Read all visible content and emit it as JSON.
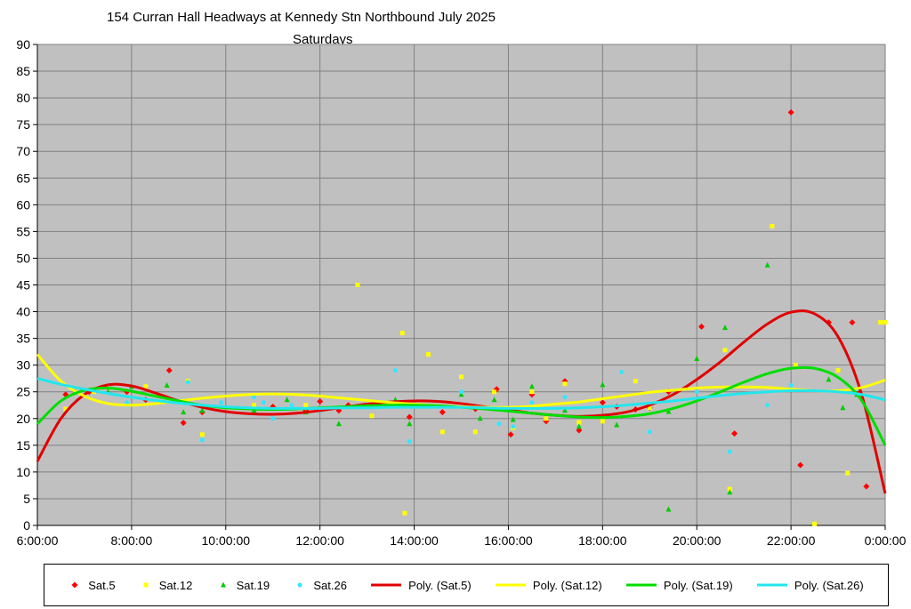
{
  "chart_data": {
    "type": "scatter",
    "title": "154 Curran Hall Headways at Kennedy Stn Northbound July 2025",
    "subtitle": "Saturdays",
    "xlabel": "",
    "ylabel": "",
    "xlim": [
      6,
      24
    ],
    "ylim": [
      0,
      90
    ],
    "y_ticks": [
      0,
      5,
      10,
      15,
      20,
      25,
      30,
      35,
      40,
      45,
      50,
      55,
      60,
      65,
      70,
      75,
      80,
      85,
      90
    ],
    "x_ticks": [
      {
        "value": 6,
        "label": "6:00:00"
      },
      {
        "value": 8,
        "label": "8:00:00"
      },
      {
        "value": 10,
        "label": "10:00:00"
      },
      {
        "value": 12,
        "label": "12:00:00"
      },
      {
        "value": 14,
        "label": "14:00:00"
      },
      {
        "value": 16,
        "label": "16:00:00"
      },
      {
        "value": 18,
        "label": "18:00:00"
      },
      {
        "value": 20,
        "label": "20:00:00"
      },
      {
        "value": 22,
        "label": "22:00:00"
      },
      {
        "value": 24,
        "label": "0:00:00"
      }
    ],
    "grid": true,
    "plot_background": "#c0c0c0",
    "legend_position": "bottom",
    "series": [
      {
        "name": "Sat.5",
        "kind": "scatter",
        "marker": "diamond",
        "color": "#ff0000",
        "points": [
          [
            6.6,
            24.5
          ],
          [
            7.1,
            25
          ],
          [
            7.9,
            25
          ],
          [
            8.3,
            23.5
          ],
          [
            8.8,
            29
          ],
          [
            9.1,
            19.2
          ],
          [
            9.5,
            21.2
          ],
          [
            10.6,
            22
          ],
          [
            11.0,
            22.2
          ],
          [
            11.7,
            21.5
          ],
          [
            12.0,
            23.2
          ],
          [
            12.4,
            21.5
          ],
          [
            12.6,
            22.5
          ],
          [
            13.1,
            22.5
          ],
          [
            13.9,
            20.3
          ],
          [
            14.6,
            21.2
          ],
          [
            15.3,
            21.8
          ],
          [
            15.75,
            25.5
          ],
          [
            16.05,
            17
          ],
          [
            16.5,
            24.5
          ],
          [
            16.8,
            19.5
          ],
          [
            17.2,
            27
          ],
          [
            17.5,
            17.8
          ],
          [
            18.0,
            23
          ],
          [
            18.3,
            22.2
          ],
          [
            18.7,
            21.7
          ],
          [
            19.0,
            22
          ],
          [
            19.4,
            25
          ],
          [
            20.1,
            37.2
          ],
          [
            20.8,
            17.2
          ],
          [
            22.0,
            77.3
          ],
          [
            22.2,
            11.3
          ],
          [
            22.8,
            38
          ],
          [
            23.3,
            38
          ],
          [
            23.6,
            7.3
          ],
          [
            23.4,
            25
          ]
        ]
      },
      {
        "name": "Sat.12",
        "kind": "scatter",
        "marker": "square",
        "color": "#ffff00",
        "points": [
          [
            6.6,
            21.8
          ],
          [
            7.2,
            25
          ],
          [
            8.3,
            26
          ],
          [
            9.2,
            27
          ],
          [
            9.5,
            17
          ],
          [
            10.6,
            22.5
          ],
          [
            11.7,
            22.5
          ],
          [
            12.8,
            45
          ],
          [
            13.1,
            20.5
          ],
          [
            13.75,
            36
          ],
          [
            13.8,
            2.3
          ],
          [
            14.3,
            32
          ],
          [
            14.6,
            17.5
          ],
          [
            15.0,
            27.8
          ],
          [
            15.3,
            17.5
          ],
          [
            15.7,
            25
          ],
          [
            16.1,
            18.3
          ],
          [
            16.5,
            25
          ],
          [
            16.8,
            20
          ],
          [
            17.2,
            26.5
          ],
          [
            17.5,
            19.3
          ],
          [
            18.0,
            19.5
          ],
          [
            18.7,
            27
          ],
          [
            19.0,
            22
          ],
          [
            20.6,
            32.8
          ],
          [
            20.7,
            6.8
          ],
          [
            21.6,
            56
          ],
          [
            22.1,
            30
          ],
          [
            22.5,
            0.3
          ],
          [
            23.0,
            29
          ],
          [
            23.2,
            9.8
          ],
          [
            23.9,
            38
          ],
          [
            24.0,
            38
          ]
        ]
      },
      {
        "name": "Sat.19",
        "kind": "scatter",
        "marker": "triangle",
        "color": "#00cc00",
        "points": [
          [
            6.8,
            25
          ],
          [
            7.5,
            25
          ],
          [
            8.0,
            26
          ],
          [
            8.75,
            26.2
          ],
          [
            9.1,
            21.2
          ],
          [
            9.5,
            21.5
          ],
          [
            10.6,
            21.5
          ],
          [
            11.3,
            23.5
          ],
          [
            11.7,
            21.2
          ],
          [
            12.4,
            19
          ],
          [
            13.6,
            23.5
          ],
          [
            13.9,
            19
          ],
          [
            15.0,
            24.5
          ],
          [
            15.4,
            20
          ],
          [
            15.7,
            23.5
          ],
          [
            16.1,
            19.8
          ],
          [
            16.5,
            26
          ],
          [
            17.2,
            21.5
          ],
          [
            17.5,
            18.5
          ],
          [
            18.0,
            26.3
          ],
          [
            18.3,
            18.8
          ],
          [
            19.4,
            21.3
          ],
          [
            19.4,
            3
          ],
          [
            20.0,
            31.2
          ],
          [
            20.6,
            37
          ],
          [
            20.7,
            6.2
          ],
          [
            21.5,
            48.7
          ],
          [
            22.8,
            27.3
          ],
          [
            23.1,
            22
          ],
          [
            23.4,
            24.5
          ]
        ]
      },
      {
        "name": "Sat.26",
        "kind": "scatter",
        "marker": "circle",
        "color": "#33e6ff",
        "points": [
          [
            7.9,
            23
          ],
          [
            9.2,
            26.8
          ],
          [
            9.5,
            16
          ],
          [
            9.9,
            23
          ],
          [
            10.6,
            24
          ],
          [
            10.8,
            23
          ],
          [
            11.0,
            20
          ],
          [
            11.4,
            22.5
          ],
          [
            12.0,
            21.5
          ],
          [
            13.6,
            29
          ],
          [
            13.9,
            15.7
          ],
          [
            15.0,
            25
          ],
          [
            15.8,
            19
          ],
          [
            16.1,
            18.5
          ],
          [
            16.5,
            23
          ],
          [
            17.2,
            24
          ],
          [
            18.4,
            28.7
          ],
          [
            19.0,
            17.5
          ],
          [
            20.0,
            25
          ],
          [
            20.7,
            13.8
          ],
          [
            21.5,
            22.5
          ],
          [
            22.0,
            26.2
          ],
          [
            23.4,
            25.5
          ]
        ]
      },
      {
        "name": "Poly. (Sat.5)",
        "kind": "trend",
        "color": "#e00000",
        "points": [
          [
            6,
            12
          ],
          [
            6.5,
            20
          ],
          [
            7,
            24.5
          ],
          [
            7.5,
            26.3
          ],
          [
            8,
            26.1
          ],
          [
            8.5,
            24.8
          ],
          [
            9,
            23.3
          ],
          [
            9.5,
            22.1
          ],
          [
            10,
            21.3
          ],
          [
            10.5,
            20.9
          ],
          [
            11,
            20.8
          ],
          [
            11.5,
            21
          ],
          [
            12,
            21.5
          ],
          [
            12.5,
            22.1
          ],
          [
            13,
            22.7
          ],
          [
            13.5,
            23.1
          ],
          [
            14,
            23.3
          ],
          [
            14.5,
            23.2
          ],
          [
            15,
            22.8
          ],
          [
            15.5,
            22.2
          ],
          [
            16,
            21.6
          ],
          [
            16.5,
            21
          ],
          [
            17,
            20.6
          ],
          [
            17.5,
            20.4
          ],
          [
            18,
            20.6
          ],
          [
            18.5,
            21.2
          ],
          [
            19,
            22.5
          ],
          [
            19.5,
            24.5
          ],
          [
            20,
            27.3
          ],
          [
            20.5,
            30.6
          ],
          [
            21,
            34.3
          ],
          [
            21.5,
            37.7
          ],
          [
            22,
            39.9
          ],
          [
            22.5,
            39.6
          ],
          [
            23,
            35.3
          ],
          [
            23.5,
            24.5
          ],
          [
            24,
            6
          ]
        ]
      },
      {
        "name": "Poly. (Sat.12)",
        "kind": "trend",
        "color": "#ffff00",
        "points": [
          [
            6,
            32
          ],
          [
            6.5,
            27
          ],
          [
            7,
            24.2
          ],
          [
            7.5,
            22.8
          ],
          [
            8,
            22.5
          ],
          [
            8.5,
            22.8
          ],
          [
            9,
            23.3
          ],
          [
            9.5,
            23.8
          ],
          [
            10,
            24.2
          ],
          [
            10.5,
            24.5
          ],
          [
            11,
            24.6
          ],
          [
            11.5,
            24.5
          ],
          [
            12,
            24.2
          ],
          [
            12.5,
            23.8
          ],
          [
            13,
            23.4
          ],
          [
            13.5,
            23
          ],
          [
            14,
            22.7
          ],
          [
            14.5,
            22.4
          ],
          [
            15,
            22.2
          ],
          [
            15.5,
            22.1
          ],
          [
            16,
            22.1
          ],
          [
            16.5,
            22.3
          ],
          [
            17,
            22.7
          ],
          [
            17.5,
            23.1
          ],
          [
            18,
            23.7
          ],
          [
            18.5,
            24.3
          ],
          [
            19,
            24.9
          ],
          [
            19.5,
            25.3
          ],
          [
            20,
            25.7
          ],
          [
            20.5,
            25.9
          ],
          [
            21,
            25.9
          ],
          [
            21.5,
            25.8
          ],
          [
            22,
            25.5
          ],
          [
            22.5,
            25.2
          ],
          [
            23,
            25.2
          ],
          [
            23.5,
            25.8
          ],
          [
            24,
            27.2
          ]
        ]
      },
      {
        "name": "Poly. (Sat.19)",
        "kind": "trend",
        "color": "#00dd00",
        "points": [
          [
            6,
            19
          ],
          [
            6.5,
            23.3
          ],
          [
            7,
            25.3
          ],
          [
            7.5,
            25.7
          ],
          [
            8,
            25.1
          ],
          [
            8.5,
            24.2
          ],
          [
            9,
            23.3
          ],
          [
            9.5,
            22.5
          ],
          [
            10,
            22
          ],
          [
            10.5,
            21.8
          ],
          [
            11,
            21.7
          ],
          [
            11.5,
            21.8
          ],
          [
            12,
            22
          ],
          [
            12.5,
            22.2
          ],
          [
            13,
            22.4
          ],
          [
            13.5,
            22.5
          ],
          [
            14,
            22.5
          ],
          [
            14.5,
            22.4
          ],
          [
            15,
            22.1
          ],
          [
            15.5,
            21.8
          ],
          [
            16,
            21.4
          ],
          [
            16.5,
            21
          ],
          [
            17,
            20.6
          ],
          [
            17.5,
            20.3
          ],
          [
            18,
            20.2
          ],
          [
            18.5,
            20.4
          ],
          [
            19,
            20.9
          ],
          [
            19.5,
            21.9
          ],
          [
            20,
            23.3
          ],
          [
            20.5,
            25
          ],
          [
            21,
            26.8
          ],
          [
            21.5,
            28.4
          ],
          [
            22,
            29.4
          ],
          [
            22.5,
            29.4
          ],
          [
            23,
            27.7
          ],
          [
            23.5,
            23.4
          ],
          [
            24,
            15
          ]
        ]
      },
      {
        "name": "Poly. (Sat.26)",
        "kind": "trend",
        "color": "#22e6ee",
        "points": [
          [
            6,
            27.5
          ],
          [
            6.5,
            26.4
          ],
          [
            7,
            25.5
          ],
          [
            7.5,
            24.7
          ],
          [
            8,
            24
          ],
          [
            8.5,
            23.4
          ],
          [
            9,
            22.9
          ],
          [
            9.5,
            22.5
          ],
          [
            10,
            22.2
          ],
          [
            10.5,
            22
          ],
          [
            11,
            21.9
          ],
          [
            11.5,
            21.9
          ],
          [
            12,
            21.9
          ],
          [
            12.5,
            22
          ],
          [
            13,
            22
          ],
          [
            13.5,
            22.1
          ],
          [
            14,
            22.1
          ],
          [
            14.5,
            22.1
          ],
          [
            15,
            22.1
          ],
          [
            15.5,
            22
          ],
          [
            16,
            21.9
          ],
          [
            16.5,
            21.9
          ],
          [
            17,
            21.9
          ],
          [
            17.5,
            22
          ],
          [
            18,
            22.2
          ],
          [
            18.5,
            22.5
          ],
          [
            19,
            22.9
          ],
          [
            19.5,
            23.3
          ],
          [
            20,
            23.8
          ],
          [
            20.5,
            24.3
          ],
          [
            21,
            24.7
          ],
          [
            21.5,
            25
          ],
          [
            22,
            25.2
          ],
          [
            22.5,
            25.2
          ],
          [
            23,
            25
          ],
          [
            23.5,
            24.5
          ],
          [
            24,
            23.5
          ]
        ]
      }
    ]
  }
}
